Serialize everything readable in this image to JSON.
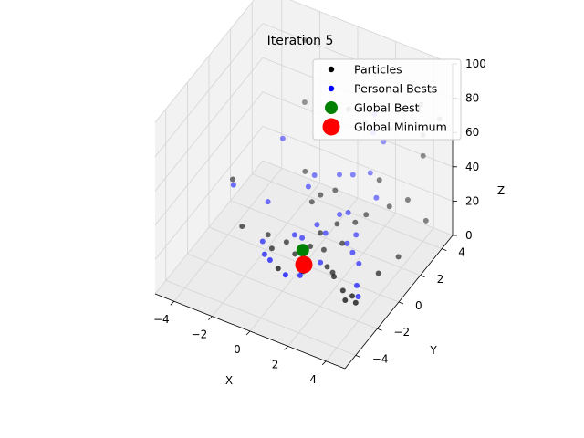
{
  "chart_data": {
    "type": "scatter",
    "projection": "3d",
    "title": "Iteration 5",
    "xlabel": "X",
    "ylabel": "Y",
    "zlabel": "Z",
    "xlim": [
      -5,
      5
    ],
    "ylim": [
      -5,
      5
    ],
    "zlim": [
      0,
      100
    ],
    "xticks": [
      -4,
      -2,
      0,
      2,
      4
    ],
    "yticks": [
      -4,
      -2,
      0,
      2,
      4
    ],
    "zticks": [
      0,
      20,
      40,
      60,
      80,
      100
    ],
    "grid": true,
    "legend_position": "top-right",
    "legend": [
      {
        "label": "Particles",
        "color": "#000000",
        "marker": "small-dot"
      },
      {
        "label": "Personal Bests",
        "color": "#0000ff",
        "marker": "small-dot"
      },
      {
        "label": "Global Best",
        "color": "#008000",
        "marker": "large-dot"
      },
      {
        "label": "Global Minimum",
        "color": "#ff0000",
        "marker": "large-dot"
      }
    ],
    "series": [
      {
        "name": "Particles",
        "color": "#000000",
        "points": [
          [
            -4.6,
            1.5,
            18
          ],
          [
            -3.6,
            0.6,
            2
          ],
          [
            -2.4,
            0.9,
            0
          ],
          [
            -1.8,
            0.2,
            0
          ],
          [
            -1.2,
            0.5,
            4
          ],
          [
            -0.7,
            0.4,
            0
          ],
          [
            -0.3,
            0.1,
            0
          ],
          [
            0.0,
            0.6,
            6
          ],
          [
            0.3,
            1.0,
            12
          ],
          [
            -0.6,
            1.8,
            20
          ],
          [
            0.6,
            0.8,
            5
          ],
          [
            1.0,
            0.4,
            0
          ],
          [
            1.4,
            0.2,
            0
          ],
          [
            1.7,
            -0.2,
            2
          ],
          [
            2.4,
            -0.6,
            0
          ],
          [
            2.8,
            -1.1,
            0
          ],
          [
            3.0,
            -0.8,
            1
          ],
          [
            3.3,
            -1.0,
            0
          ],
          [
            3.7,
            0.4,
            8
          ],
          [
            4.3,
            1.2,
            14
          ],
          [
            1.4,
            1.1,
            10
          ],
          [
            0.9,
            1.5,
            16
          ],
          [
            -0.2,
            1.9,
            25
          ],
          [
            0.4,
            2.2,
            28
          ],
          [
            -1.3,
            2.4,
            30
          ],
          [
            1.8,
            1.6,
            20
          ],
          [
            2.2,
            1.9,
            24
          ],
          [
            3.2,
            2.3,
            30
          ],
          [
            4.0,
            2.6,
            35
          ],
          [
            2.5,
            2.6,
            40
          ],
          [
            0.2,
            -0.4,
            0
          ],
          [
            -0.9,
            -0.8,
            0
          ],
          [
            -2.5,
            4.5,
            85
          ],
          [
            -2.0,
            3.6,
            58
          ],
          [
            0.2,
            3.8,
            62
          ],
          [
            1.3,
            3.4,
            62
          ],
          [
            2.4,
            3.8,
            60
          ],
          [
            3.4,
            4.6,
            70
          ],
          [
            4.3,
            3.5,
            55
          ],
          [
            4.6,
            4.5,
            70
          ],
          [
            3.9,
            4.2,
            60
          ],
          [
            4.9,
            2.7,
            26
          ],
          [
            3.5,
            4.7,
            72
          ]
        ]
      },
      {
        "name": "Personal Bests",
        "color": "#0000ff",
        "points": [
          [
            -4.5,
            1.4,
            16
          ],
          [
            -2.8,
            1.6,
            12
          ],
          [
            -2.4,
            0.4,
            0
          ],
          [
            -1.9,
            -0.3,
            0
          ],
          [
            -1.5,
            -0.5,
            0
          ],
          [
            -1.0,
            0.9,
            6
          ],
          [
            -0.6,
            0.9,
            6
          ],
          [
            -0.3,
            0.6,
            4
          ],
          [
            -0.1,
            1.4,
            12
          ],
          [
            0.4,
            1.3,
            10
          ],
          [
            0.8,
            1.9,
            18
          ],
          [
            1.2,
            2.0,
            20
          ],
          [
            1.6,
            1.2,
            10
          ],
          [
            2.0,
            1.0,
            8
          ],
          [
            2.5,
            0.7,
            6
          ],
          [
            2.9,
            -0.2,
            2
          ],
          [
            3.2,
            -0.6,
            0
          ],
          [
            -0.4,
            -1.0,
            0
          ],
          [
            0.1,
            -0.4,
            0
          ],
          [
            0.2,
            -0.7,
            0
          ],
          [
            0.7,
            0.3,
            2
          ],
          [
            -0.9,
            2.0,
            26
          ],
          [
            -0.8,
            2.4,
            30
          ],
          [
            -2.7,
            2.8,
            40
          ],
          [
            1.0,
            2.8,
            35
          ],
          [
            1.8,
            3.0,
            38
          ],
          [
            2.4,
            2.5,
            30
          ],
          [
            1.6,
            3.6,
            56
          ],
          [
            2.1,
            3.7,
            52
          ],
          [
            1.4,
            4.1,
            62
          ],
          [
            0.4,
            2.6,
            34
          ],
          [
            1.9,
            1.5,
            14
          ]
        ]
      },
      {
        "name": "Global Best",
        "color": "#008000",
        "points": [
          [
            -0.4,
            0.6,
            2
          ]
        ]
      },
      {
        "name": "Global Minimum",
        "color": "#ff0000",
        "points": [
          [
            0.0,
            0.0,
            0.0
          ]
        ]
      }
    ]
  }
}
